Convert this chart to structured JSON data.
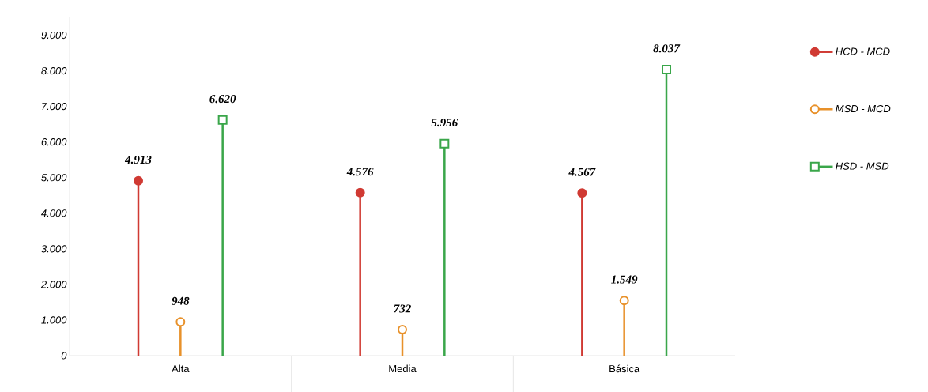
{
  "chart_data": {
    "type": "lollipop",
    "categories": [
      "Alta",
      "Media",
      "Básica"
    ],
    "series": [
      {
        "name": "HCD - MCD",
        "color": "#d03a33",
        "marker": "circle",
        "values": [
          4913,
          4576,
          4567
        ],
        "value_labels": [
          "4.913",
          "4.576",
          "4.567"
        ]
      },
      {
        "name": "MSD - MCD",
        "color": "#e8912a",
        "marker": "circle",
        "values": [
          948,
          732,
          1549
        ],
        "value_labels": [
          "948",
          "732",
          "1.549"
        ]
      },
      {
        "name": "HSD - MSD",
        "color": "#3aa64a",
        "marker": "square",
        "values": [
          6620,
          5956,
          8037
        ],
        "value_labels": [
          "6.620",
          "5.956",
          "8.037"
        ]
      }
    ],
    "ylim": [
      0,
      9500
    ],
    "yticks": [
      {
        "value": 0,
        "label": "0"
      },
      {
        "value": 1000,
        "label": "1.000"
      },
      {
        "value": 2000,
        "label": "2.000"
      },
      {
        "value": 3000,
        "label": "3.000"
      },
      {
        "value": 4000,
        "label": "4.000"
      },
      {
        "value": 5000,
        "label": "5.000"
      },
      {
        "value": 6000,
        "label": "6.000"
      },
      {
        "value": 7000,
        "label": "7.000"
      },
      {
        "value": 8000,
        "label": "8.000"
      },
      {
        "value": 9000,
        "label": "9.000"
      }
    ],
    "legend": "right",
    "grid": false
  }
}
